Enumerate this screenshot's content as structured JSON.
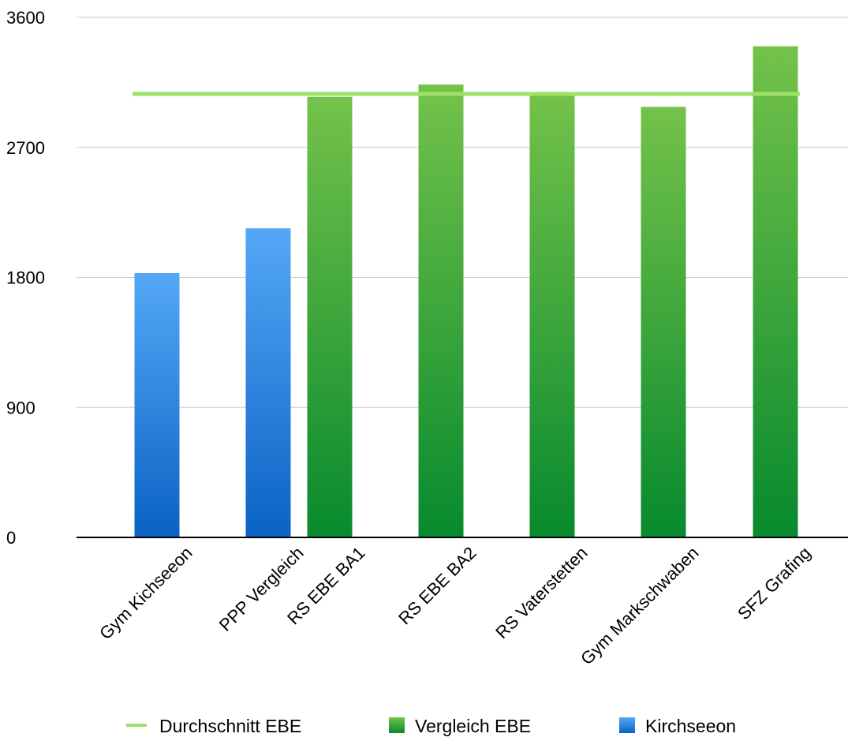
{
  "chart_data": {
    "type": "bar",
    "title": "",
    "xlabel": "",
    "ylabel": "",
    "ylim": [
      0,
      3600
    ],
    "yticks": [
      "0",
      "900",
      "1800",
      "2700",
      "3600"
    ],
    "ytick_values": [
      0,
      900,
      1800,
      2700,
      3600
    ],
    "grid": true,
    "legend_position": "bottom",
    "categories": [
      "Gym Kichseeon",
      "PPP Vergleich",
      "RS EBE BA1",
      "RS EBE BA2",
      "RS Vaterstetten",
      "Gym Markschwaben",
      "SFZ Grafing"
    ],
    "series": [
      {
        "name": "Kirchseeon",
        "kind": "bar",
        "color_top": "#55a8f7",
        "color_bottom": "#0a62c4",
        "values": [
          1830,
          2140,
          null,
          null,
          null,
          null,
          null
        ]
      },
      {
        "name": "Vergleich EBE",
        "kind": "bar",
        "color_top": "#74c24a",
        "color_bottom": "#078a2e",
        "values": [
          null,
          null,
          3050,
          3135,
          3070,
          2980,
          3400
        ]
      },
      {
        "name": "Durchschnitt EBE",
        "kind": "line",
        "color": "#9ee06a",
        "value": 3070
      }
    ],
    "legend": [
      {
        "name": "Durchschnitt EBE",
        "symbol": "line",
        "color": "#9ee06a"
      },
      {
        "name": "Vergleich EBE",
        "symbol": "box-green"
      },
      {
        "name": "Kirchseeon",
        "symbol": "box-blue"
      }
    ]
  }
}
